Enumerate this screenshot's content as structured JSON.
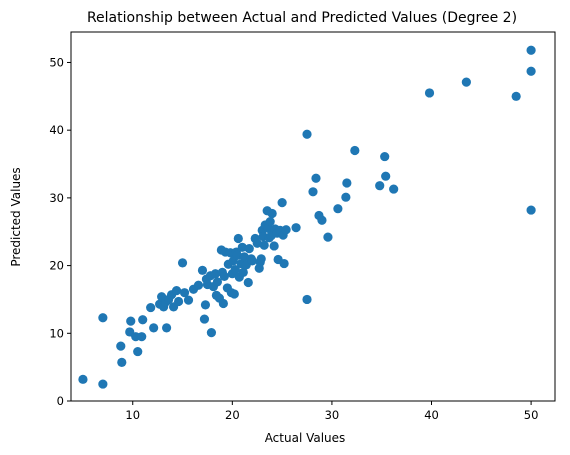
{
  "chart_data": {
    "type": "scatter",
    "title": "Relationship between Actual and Predicted Values (Degree 2)",
    "xlabel": "Actual Values",
    "ylabel": "Predicted Values",
    "xlim": [
      3.8,
      52.4
    ],
    "ylim": [
      0,
      54.5
    ],
    "xticks": [
      10,
      20,
      30,
      40,
      50
    ],
    "yticks": [
      0,
      10,
      20,
      30,
      40,
      50
    ],
    "grid": false,
    "marker_color": "#1f77b4",
    "series": [
      {
        "points": [
          [
            5.0,
            3.2
          ],
          [
            7.0,
            2.5
          ],
          [
            7.0,
            12.3
          ],
          [
            8.8,
            8.1
          ],
          [
            8.9,
            5.7
          ],
          [
            9.7,
            10.2
          ],
          [
            9.8,
            11.8
          ],
          [
            10.3,
            9.5
          ],
          [
            10.5,
            7.3
          ],
          [
            10.9,
            9.5
          ],
          [
            11.0,
            12.0
          ],
          [
            11.8,
            13.8
          ],
          [
            12.1,
            10.8
          ],
          [
            12.7,
            14.3
          ],
          [
            12.9,
            15.4
          ],
          [
            13.1,
            13.9
          ],
          [
            13.3,
            14.6
          ],
          [
            13.4,
            10.8
          ],
          [
            13.6,
            15.0
          ],
          [
            13.9,
            15.7
          ],
          [
            14.1,
            13.9
          ],
          [
            14.4,
            16.3
          ],
          [
            14.6,
            14.7
          ],
          [
            15.0,
            20.4
          ],
          [
            15.2,
            16.0
          ],
          [
            15.6,
            14.9
          ],
          [
            16.1,
            16.5
          ],
          [
            16.6,
            17.1
          ],
          [
            17.0,
            19.3
          ],
          [
            17.2,
            12.1
          ],
          [
            17.3,
            14.2
          ],
          [
            17.4,
            18.0
          ],
          [
            17.5,
            17.2
          ],
          [
            17.8,
            18.5
          ],
          [
            17.9,
            10.1
          ],
          [
            18.1,
            16.9
          ],
          [
            18.3,
            18.8
          ],
          [
            18.4,
            15.6
          ],
          [
            18.5,
            17.6
          ],
          [
            18.7,
            15.2
          ],
          [
            18.9,
            22.3
          ],
          [
            19.0,
            19.0
          ],
          [
            19.1,
            14.4
          ],
          [
            19.2,
            18.4
          ],
          [
            19.3,
            22.0
          ],
          [
            19.5,
            16.7
          ],
          [
            19.6,
            20.2
          ],
          [
            19.8,
            21.9
          ],
          [
            19.9,
            16.0
          ],
          [
            20.0,
            18.8
          ],
          [
            20.1,
            20.7
          ],
          [
            20.2,
            15.8
          ],
          [
            20.3,
            19.4
          ],
          [
            20.4,
            22.0
          ],
          [
            20.5,
            21.5
          ],
          [
            20.6,
            24.0
          ],
          [
            20.7,
            18.3
          ],
          [
            20.9,
            20.3
          ],
          [
            21.0,
            22.7
          ],
          [
            21.1,
            19.0
          ],
          [
            21.2,
            21.3
          ],
          [
            21.4,
            20.1
          ],
          [
            21.6,
            17.5
          ],
          [
            21.7,
            22.5
          ],
          [
            21.9,
            21.0
          ],
          [
            22.0,
            20.7
          ],
          [
            22.3,
            24.0
          ],
          [
            22.5,
            23.3
          ],
          [
            22.7,
            19.6
          ],
          [
            22.8,
            20.5
          ],
          [
            22.9,
            21.0
          ],
          [
            23.0,
            25.2
          ],
          [
            23.1,
            24.3
          ],
          [
            23.2,
            23.0
          ],
          [
            23.3,
            26.0
          ],
          [
            23.5,
            28.1
          ],
          [
            23.6,
            25.5
          ],
          [
            23.7,
            24.1
          ],
          [
            23.8,
            26.5
          ],
          [
            23.9,
            24.4
          ],
          [
            24.0,
            27.7
          ],
          [
            24.2,
            22.9
          ],
          [
            24.3,
            25.4
          ],
          [
            24.5,
            24.8
          ],
          [
            24.6,
            20.9
          ],
          [
            24.8,
            25.2
          ],
          [
            25.0,
            29.3
          ],
          [
            25.1,
            24.5
          ],
          [
            25.2,
            20.3
          ],
          [
            25.4,
            25.3
          ],
          [
            26.4,
            25.6
          ],
          [
            27.5,
            39.4
          ],
          [
            27.5,
            15.0
          ],
          [
            28.1,
            30.9
          ],
          [
            28.4,
            32.9
          ],
          [
            28.7,
            27.4
          ],
          [
            29.0,
            26.7
          ],
          [
            29.6,
            24.2
          ],
          [
            30.6,
            28.4
          ],
          [
            31.4,
            30.1
          ],
          [
            31.5,
            32.2
          ],
          [
            32.3,
            37.0
          ],
          [
            34.8,
            31.8
          ],
          [
            35.3,
            36.1
          ],
          [
            35.4,
            33.2
          ],
          [
            36.2,
            31.3
          ],
          [
            39.8,
            45.5
          ],
          [
            43.5,
            47.1
          ],
          [
            48.5,
            45.0
          ],
          [
            50.0,
            51.8
          ],
          [
            50.0,
            48.7
          ],
          [
            50.0,
            28.2
          ]
        ]
      }
    ]
  }
}
